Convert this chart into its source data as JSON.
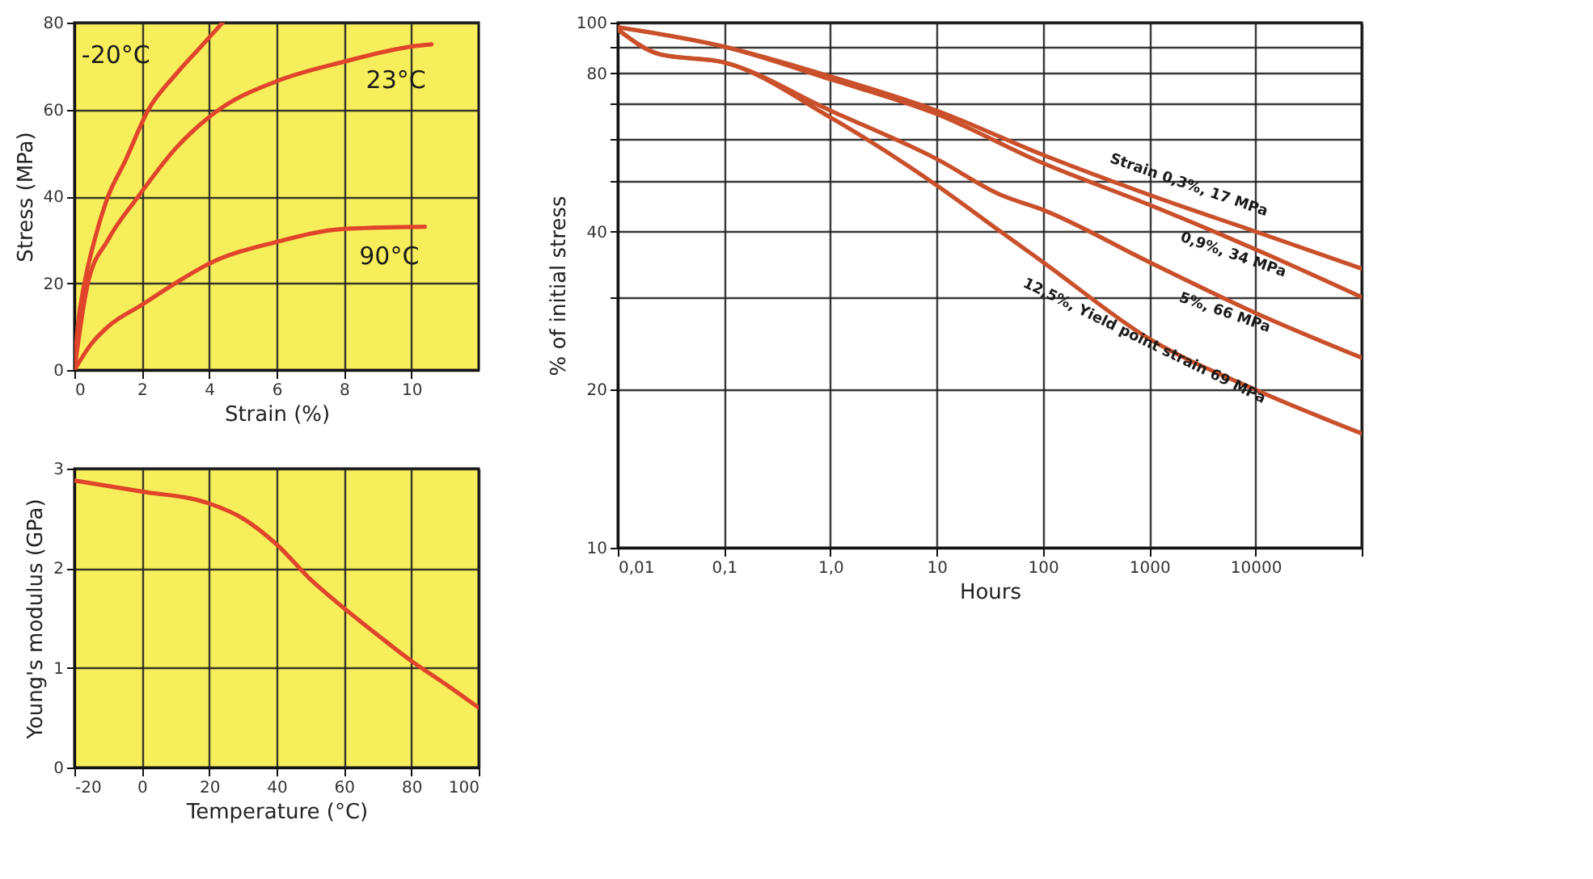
{
  "chart_data": [
    {
      "type": "line",
      "xlabel": "Strain (%)",
      "ylabel": "Stress (MPa)",
      "xlim": [
        0,
        12
      ],
      "xticks": [
        0,
        2,
        4,
        6,
        8,
        10
      ],
      "ylim": [
        0,
        80
      ],
      "yticks": [
        0,
        20,
        40,
        60,
        80
      ],
      "grid": true,
      "legend": false,
      "series": [
        {
          "name": "-20°C",
          "color": "#e0452b",
          "x": [
            0,
            0.1,
            0.3,
            0.6,
            1,
            1.5,
            2.2,
            3,
            3.7,
            4.4
          ],
          "values": [
            0,
            10,
            20,
            30,
            40,
            48,
            60,
            68,
            74,
            80
          ]
        },
        {
          "name": "23°C",
          "color": "#e0452b",
          "x": [
            0,
            0.4,
            1,
            1.9,
            3,
            4.3,
            6,
            8,
            10,
            10.6
          ],
          "values": [
            0,
            20,
            30,
            40,
            51,
            60,
            66.5,
            71,
            74.5,
            75
          ]
        },
        {
          "name": "90°C",
          "color": "#e0452b",
          "x": [
            0,
            0.5,
            1,
            2,
            3,
            4,
            6,
            8,
            10.4
          ],
          "values": [
            0,
            6,
            10,
            15,
            20,
            24.5,
            29.5,
            32.5,
            33
          ]
        }
      ]
    },
    {
      "type": "line",
      "xlabel": "Temperature (°C)",
      "ylabel": "Young's modulus (GPa)",
      "xlim": [
        -20,
        100
      ],
      "xticks": [
        -20,
        0,
        20,
        40,
        60,
        80,
        100
      ],
      "ylim": [
        0,
        3
      ],
      "yticks": [
        0,
        1,
        2,
        3
      ],
      "grid": true,
      "legend": false,
      "series": [
        {
          "color": "#e0452b",
          "x": [
            -20,
            0,
            20,
            30,
            40,
            50,
            60,
            70,
            80,
            90,
            100
          ],
          "values": [
            2.88,
            2.77,
            2.65,
            2.5,
            2.24,
            1.89,
            1.6,
            1.33,
            1.07,
            0.84,
            0.6
          ]
        }
      ]
    },
    {
      "type": "line",
      "xlabel": "Hours",
      "ylabel": "% of initial stress",
      "log": "xy",
      "xlim": [
        0.01,
        100000
      ],
      "xticks": [
        {
          "value": 0.01,
          "label": "0,01"
        },
        {
          "value": 0.1,
          "label": "0,1"
        },
        {
          "value": 1,
          "label": "1,0"
        },
        10,
        100,
        1000,
        10000,
        {
          "value": 100000,
          "label": null
        }
      ],
      "ylim": [
        10,
        100
      ],
      "yticks": [
        10,
        20,
        {
          "value": 30,
          "label": null
        },
        40,
        {
          "value": 50,
          "label": null
        },
        {
          "value": 60,
          "label": null
        },
        {
          "value": 70,
          "label": null
        },
        80,
        {
          "value": 90,
          "label": null
        },
        100
      ],
      "grid": true,
      "legend": false,
      "series": [
        {
          "name": "Strain 0,3%, 17 MPa",
          "color": "#c9502a",
          "x": [
            0.01,
            0.1,
            1,
            10,
            100,
            1000,
            10000,
            100000
          ],
          "values": [
            98,
            90,
            79,
            68,
            56,
            47,
            40,
            34
          ]
        },
        {
          "name": "0,9%, 34 MPa",
          "color": "#c9502a",
          "x": [
            0.01,
            0.1,
            1,
            10,
            100,
            1000,
            10000,
            100000
          ],
          "values": [
            98,
            90,
            78,
            67,
            54,
            45,
            37,
            30
          ]
        },
        {
          "name": "5%, 66 MPa",
          "color": "#c9502a",
          "x": [
            0.01,
            0.025,
            0.1,
            1,
            10,
            40,
            100,
            1000,
            10000,
            100000
          ],
          "values": [
            97,
            87,
            84,
            68,
            55,
            47,
            44,
            35,
            28,
            23
          ]
        },
        {
          "name": "12,5%, Yield point strain 69 MPa",
          "color": "#c9502a",
          "x": [
            0.01,
            0.025,
            0.1,
            1,
            10,
            40,
            100,
            1000,
            10000,
            100000
          ],
          "values": [
            97,
            87,
            84,
            66,
            49,
            40,
            35,
            25,
            20,
            16.5
          ]
        }
      ]
    }
  ]
}
